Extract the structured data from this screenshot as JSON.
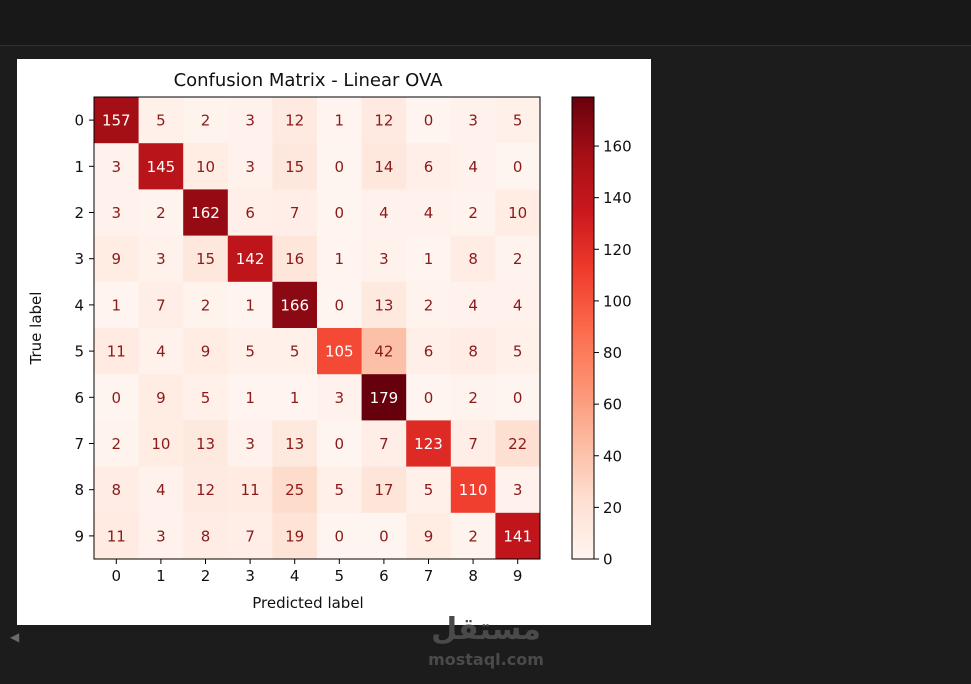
{
  "chart_data": {
    "type": "heatmap",
    "title": "Confusion Matrix - Linear OVA",
    "xlabel": "Predicted label",
    "ylabel": "True label",
    "x_ticks": [
      "0",
      "1",
      "2",
      "3",
      "4",
      "5",
      "6",
      "7",
      "8",
      "9"
    ],
    "y_ticks": [
      "0",
      "1",
      "2",
      "3",
      "4",
      "5",
      "6",
      "7",
      "8",
      "9"
    ],
    "matrix": [
      [
        157,
        5,
        2,
        3,
        12,
        1,
        12,
        0,
        3,
        5
      ],
      [
        3,
        145,
        10,
        3,
        15,
        0,
        14,
        6,
        4,
        0
      ],
      [
        3,
        2,
        162,
        6,
        7,
        0,
        4,
        4,
        2,
        10
      ],
      [
        9,
        3,
        15,
        142,
        16,
        1,
        3,
        1,
        8,
        2
      ],
      [
        1,
        7,
        2,
        1,
        166,
        0,
        13,
        2,
        4,
        4
      ],
      [
        11,
        4,
        9,
        5,
        5,
        105,
        42,
        6,
        8,
        5
      ],
      [
        0,
        9,
        5,
        1,
        1,
        3,
        179,
        0,
        2,
        0
      ],
      [
        2,
        10,
        13,
        3,
        13,
        0,
        7,
        123,
        7,
        22
      ],
      [
        8,
        4,
        12,
        11,
        25,
        5,
        17,
        5,
        110,
        3
      ],
      [
        11,
        3,
        8,
        7,
        19,
        0,
        0,
        9,
        2,
        141
      ]
    ],
    "colormap": "Reds",
    "colorbar": {
      "min": 0,
      "max": 179,
      "ticks": [
        "0",
        "20",
        "40",
        "60",
        "80",
        "100",
        "120",
        "140",
        "160"
      ]
    },
    "grid": false
  },
  "watermark": {
    "arabic": "مستقل",
    "latin": "mostaql.com"
  },
  "icons": {
    "scroll_left": "left-triangle-icon"
  },
  "glyphs": {
    "scroll_left": "◀"
  },
  "colors": {
    "background": "#1c1c1c",
    "figure": "#ffffff"
  }
}
